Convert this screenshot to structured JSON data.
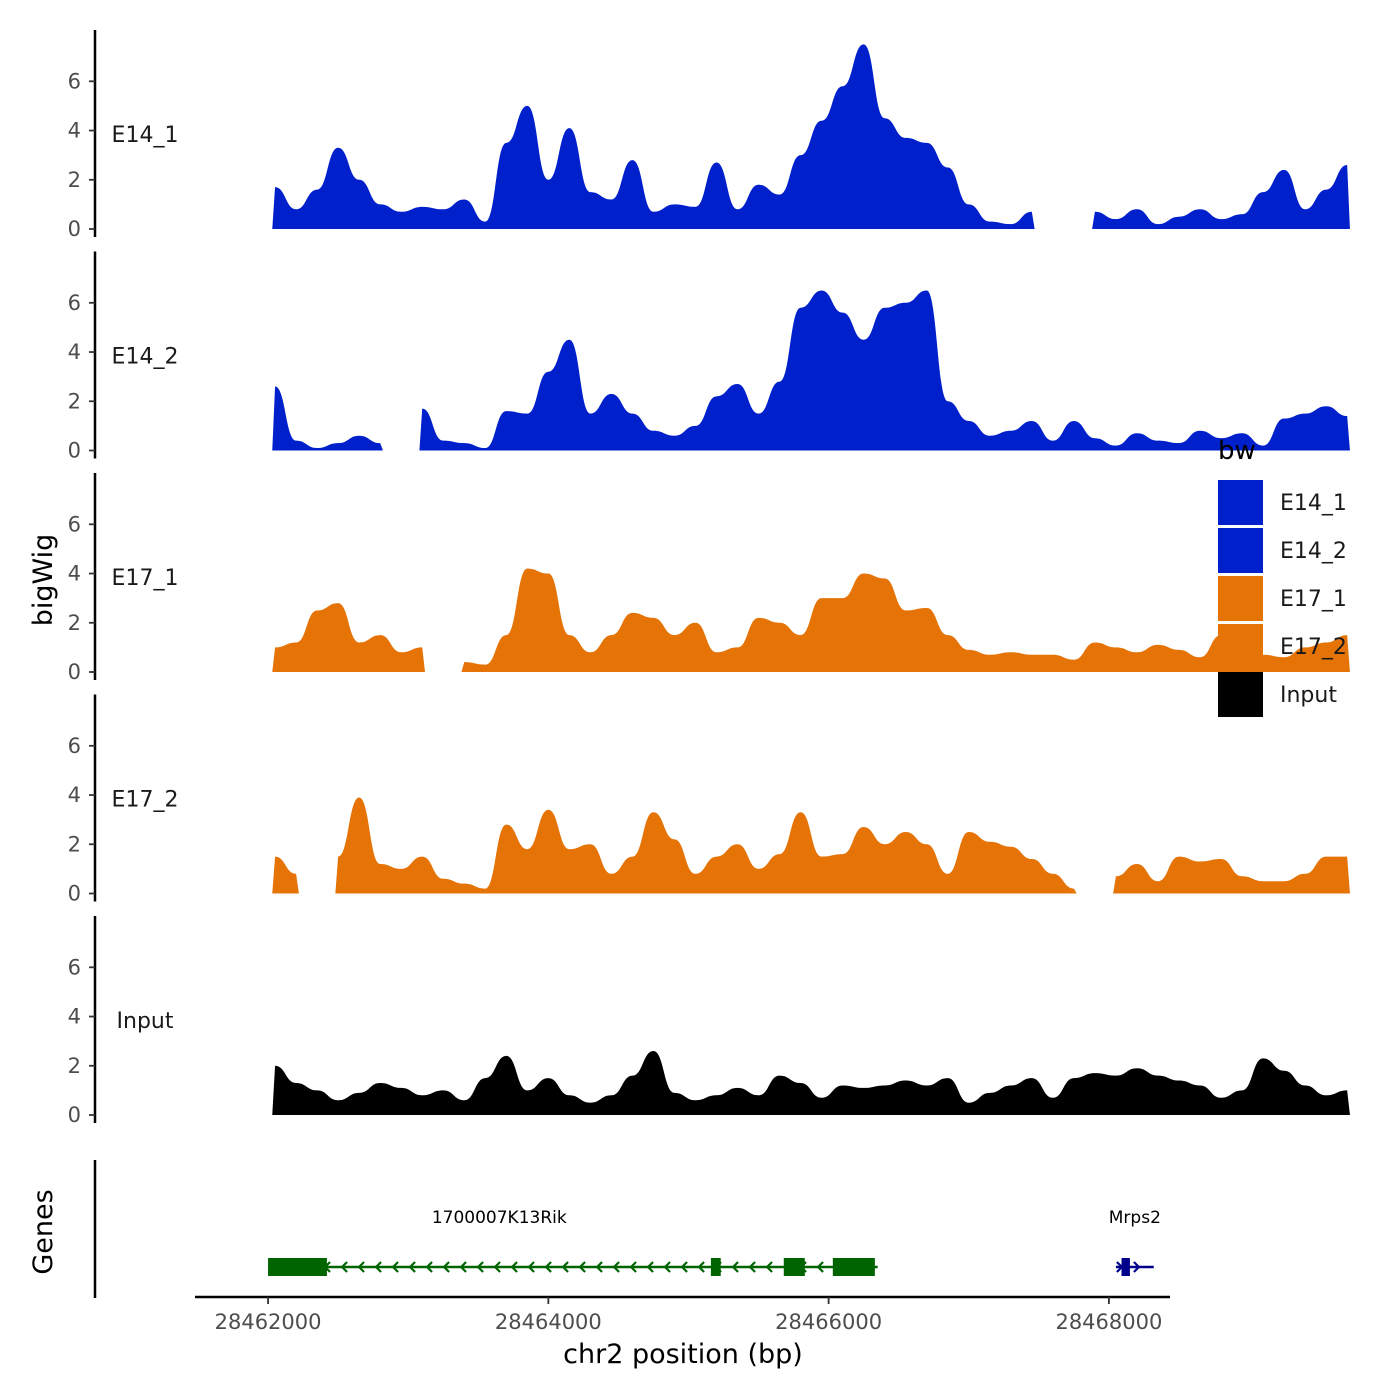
{
  "chart_data": {
    "type": "area",
    "title": "",
    "xlabel": "chr2 position (bp)",
    "ylabel": "bigWig",
    "gene_track_label": "Genes",
    "xlim": [
      28461600,
      28468650
    ],
    "ylim": [
      0,
      7.8
    ],
    "x_ticks": [
      28462000,
      28464000,
      28466000,
      28468000
    ],
    "x_tick_labels": [
      "28462000",
      "28464000",
      "28466000",
      "28468000"
    ],
    "y_ticks": [
      0,
      2,
      4,
      6
    ],
    "y_tick_labels": [
      "0",
      "2",
      "4",
      "6"
    ],
    "legend": {
      "title": "bw",
      "position": "right",
      "entries": [
        {
          "label": "E14_1",
          "color": "#0020CC"
        },
        {
          "label": "E14_2",
          "color": "#0020CC"
        },
        {
          "label": "E17_1",
          "color": "#E57306"
        },
        {
          "label": "E17_2",
          "color": "#E57306"
        },
        {
          "label": "Input",
          "color": "#000000"
        }
      ]
    },
    "x_start": 28462050,
    "x_step": 150,
    "series": [
      {
        "name": "E14_1",
        "color": "#0020CC",
        "values": [
          1.7,
          0.8,
          1.6,
          3.3,
          2.0,
          1.0,
          0.7,
          0.9,
          0.8,
          1.2,
          0.3,
          3.5,
          5.0,
          2.0,
          4.1,
          1.5,
          1.2,
          2.8,
          0.7,
          1.0,
          0.9,
          2.7,
          0.8,
          1.8,
          1.4,
          3.0,
          4.4,
          5.8,
          7.5,
          4.5,
          3.7,
          3.5,
          2.5,
          1.0,
          0.3,
          0.2,
          0.7,
          null,
          null,
          0.7,
          0.4,
          0.8,
          0.2,
          0.5,
          0.8,
          0.4,
          0.6,
          1.5,
          2.4,
          0.8,
          1.6,
          2.6
        ]
      },
      {
        "name": "E14_2",
        "color": "#0020CC",
        "values": [
          2.6,
          0.4,
          0.1,
          0.3,
          0.6,
          0.3,
          null,
          1.7,
          0.4,
          0.3,
          0.1,
          1.6,
          1.5,
          3.2,
          4.5,
          1.5,
          2.3,
          1.5,
          0.8,
          0.6,
          1.0,
          2.2,
          2.7,
          1.5,
          2.8,
          5.8,
          6.5,
          5.6,
          4.5,
          5.8,
          6.0,
          6.5,
          2.0,
          1.2,
          0.6,
          0.8,
          1.2,
          0.4,
          1.2,
          0.5,
          0.2,
          0.7,
          0.4,
          0.3,
          0.8,
          0.5,
          0.7,
          0.2,
          1.3,
          1.5,
          1.8,
          1.4
        ]
      },
      {
        "name": "E17_1",
        "color": "#E57306",
        "values": [
          1.0,
          1.2,
          2.5,
          2.8,
          1.2,
          1.5,
          0.8,
          1.0,
          null,
          0.4,
          0.3,
          1.5,
          4.2,
          4.0,
          1.5,
          0.8,
          1.5,
          2.4,
          2.2,
          1.5,
          2.0,
          0.8,
          1.0,
          2.2,
          2.0,
          1.5,
          3.0,
          3.0,
          4.0,
          3.8,
          2.5,
          2.6,
          1.5,
          0.9,
          0.7,
          0.8,
          0.7,
          0.7,
          0.5,
          1.2,
          1.0,
          0.8,
          1.1,
          0.9,
          0.6,
          1.5,
          1.0,
          0.7,
          0.6,
          1.0,
          1.2,
          1.5
        ]
      },
      {
        "name": "E17_2",
        "color": "#E57306",
        "values": [
          1.5,
          0.8,
          null,
          1.5,
          3.9,
          1.2,
          1.0,
          1.5,
          0.6,
          0.4,
          0.2,
          2.8,
          1.8,
          3.4,
          1.8,
          2.0,
          0.8,
          1.5,
          3.3,
          2.2,
          0.8,
          1.5,
          2.0,
          1.0,
          1.6,
          3.3,
          1.5,
          1.6,
          2.7,
          2.0,
          2.5,
          2.0,
          0.8,
          2.5,
          2.1,
          1.9,
          1.4,
          0.8,
          0.2,
          null,
          0.7,
          1.2,
          0.5,
          1.5,
          1.3,
          1.4,
          0.7,
          0.5,
          0.5,
          0.8,
          1.5,
          1.5
        ]
      },
      {
        "name": "Input",
        "color": "#000000",
        "values": [
          2.0,
          1.3,
          1.0,
          0.6,
          0.9,
          1.3,
          1.1,
          0.8,
          1.0,
          0.6,
          1.5,
          2.4,
          1.0,
          1.5,
          0.8,
          0.5,
          0.8,
          1.6,
          2.6,
          0.9,
          0.6,
          0.8,
          1.1,
          0.8,
          1.6,
          1.3,
          0.7,
          1.2,
          1.1,
          1.2,
          1.4,
          1.2,
          1.5,
          0.5,
          0.9,
          1.2,
          1.5,
          0.7,
          1.5,
          1.7,
          1.6,
          1.9,
          1.6,
          1.4,
          1.2,
          0.7,
          1.0,
          2.3,
          1.8,
          1.2,
          0.8,
          1.0
        ]
      }
    ],
    "genes": [
      {
        "name": "1700007K13Rik",
        "color": "#006400",
        "start": 28462000,
        "end": 28466350,
        "strand": "-",
        "exons": [
          [
            28462000,
            28462420
          ],
          [
            28465160,
            28465230
          ],
          [
            28465680,
            28465830
          ],
          [
            28466030,
            28466330
          ]
        ]
      },
      {
        "name": "Mrps2",
        "color": "#00008B",
        "start": 28468050,
        "end": 28468320,
        "strand": "+",
        "exons": [
          [
            28468090,
            28468150
          ]
        ]
      }
    ]
  }
}
